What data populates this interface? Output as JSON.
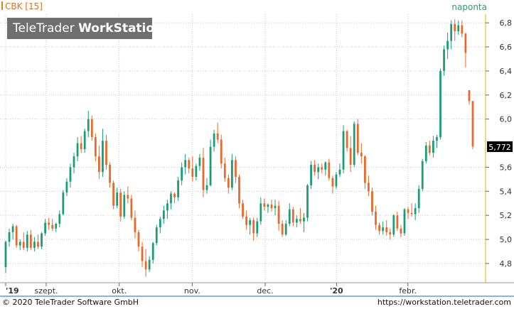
{
  "chart_title": "CBK [15]",
  "interval": "naponta",
  "logo": {
    "brand": "TeleTrader",
    "product": "WorkStation"
  },
  "footer": {
    "copyright": "© 2020 TeleTrader Software GmbH",
    "url": "https://workstation.teletrader.com"
  },
  "colors": {
    "up": "#1a9d76",
    "down": "#e8692a",
    "grid": "#c9c9c9",
    "last_price_bg": "#000000"
  },
  "chart_data": {
    "type": "candlestick",
    "title": "CBK [15]",
    "ylim": [
      4.64,
      6.86
    ],
    "y_ticks": [
      "4,8",
      "5,0",
      "5,2",
      "5,4",
      "5,6",
      "6,0",
      "6,2",
      "6,4",
      "6,6",
      "6,8"
    ],
    "x_ticks": [
      "'19",
      "szept.",
      "okt.",
      "nov.",
      "dec.",
      "'20",
      "febr."
    ],
    "last_price": "5,772",
    "grid": true,
    "candles": [
      [
        4.77,
        4.99,
        4.72,
        4.98
      ],
      [
        4.98,
        5.09,
        4.94,
        5.06
      ],
      [
        5.06,
        5.13,
        5.0,
        5.11
      ],
      [
        5.11,
        5.12,
        4.93,
        4.95
      ],
      [
        4.95,
        5.0,
        4.91,
        4.98
      ],
      [
        4.98,
        5.06,
        4.91,
        4.93
      ],
      [
        4.93,
        5.07,
        4.9,
        5.04
      ],
      [
        5.04,
        5.08,
        4.91,
        4.93
      ],
      [
        4.93,
        5.02,
        4.9,
        4.98
      ],
      [
        4.98,
        5.04,
        4.92,
        4.94
      ],
      [
        4.94,
        5.06,
        4.92,
        5.05
      ],
      [
        5.05,
        5.17,
        5.03,
        5.14
      ],
      [
        5.14,
        5.18,
        5.08,
        5.12
      ],
      [
        5.12,
        5.17,
        5.07,
        5.09
      ],
      [
        5.09,
        5.14,
        5.06,
        5.13
      ],
      [
        5.13,
        5.24,
        5.1,
        5.21
      ],
      [
        5.21,
        5.41,
        5.2,
        5.39
      ],
      [
        5.39,
        5.51,
        5.36,
        5.48
      ],
      [
        5.48,
        5.63,
        5.43,
        5.6
      ],
      [
        5.6,
        5.72,
        5.55,
        5.69
      ],
      [
        5.69,
        5.85,
        5.65,
        5.8
      ],
      [
        5.8,
        5.86,
        5.72,
        5.75
      ],
      [
        5.75,
        5.92,
        5.72,
        5.9
      ],
      [
        5.9,
        6.07,
        5.85,
        6.0
      ],
      [
        6.0,
        6.03,
        5.82,
        5.85
      ],
      [
        5.85,
        5.88,
        5.65,
        5.69
      ],
      [
        5.69,
        5.78,
        5.5,
        5.56
      ],
      [
        5.56,
        5.92,
        5.52,
        5.82
      ],
      [
        5.82,
        5.87,
        5.58,
        5.62
      ],
      [
        5.62,
        5.64,
        5.43,
        5.47
      ],
      [
        5.47,
        5.49,
        5.25,
        5.28
      ],
      [
        5.28,
        5.43,
        5.26,
        5.39
      ],
      [
        5.39,
        5.42,
        5.15,
        5.19
      ],
      [
        5.19,
        5.4,
        5.17,
        5.37
      ],
      [
        5.37,
        5.44,
        5.3,
        5.34
      ],
      [
        5.34,
        5.37,
        5.16,
        5.18
      ],
      [
        5.18,
        5.24,
        5.01,
        5.06
      ],
      [
        5.06,
        5.08,
        4.9,
        4.94
      ],
      [
        4.94,
        4.98,
        4.77,
        4.82
      ],
      [
        4.82,
        4.92,
        4.69,
        4.75
      ],
      [
        4.75,
        4.86,
        4.73,
        4.83
      ],
      [
        4.83,
        4.98,
        4.8,
        4.97
      ],
      [
        4.97,
        5.12,
        4.95,
        5.1
      ],
      [
        5.1,
        5.19,
        5.05,
        5.17
      ],
      [
        5.17,
        5.28,
        5.13,
        5.24
      ],
      [
        5.24,
        5.33,
        5.17,
        5.3
      ],
      [
        5.3,
        5.4,
        5.25,
        5.38
      ],
      [
        5.38,
        5.39,
        5.3,
        5.35
      ],
      [
        5.35,
        5.52,
        5.32,
        5.49
      ],
      [
        5.49,
        5.64,
        5.45,
        5.6
      ],
      [
        5.6,
        5.71,
        5.54,
        5.66
      ],
      [
        5.66,
        5.68,
        5.55,
        5.59
      ],
      [
        5.59,
        5.69,
        5.48,
        5.52
      ],
      [
        5.52,
        5.63,
        5.49,
        5.61
      ],
      [
        5.61,
        5.71,
        5.57,
        5.68
      ],
      [
        5.68,
        5.76,
        5.35,
        5.41
      ],
      [
        5.41,
        5.51,
        5.38,
        5.45
      ],
      [
        5.45,
        5.83,
        5.44,
        5.77
      ],
      [
        5.77,
        5.91,
        5.73,
        5.88
      ],
      [
        5.88,
        5.97,
        5.8,
        5.83
      ],
      [
        5.83,
        5.87,
        5.59,
        5.63
      ],
      [
        5.63,
        5.68,
        5.48,
        5.51
      ],
      [
        5.51,
        5.54,
        5.38,
        5.43
      ],
      [
        5.43,
        5.71,
        5.41,
        5.66
      ],
      [
        5.66,
        5.69,
        5.47,
        5.52
      ],
      [
        5.52,
        5.54,
        5.26,
        5.3
      ],
      [
        5.3,
        5.33,
        5.17,
        5.19
      ],
      [
        5.19,
        5.24,
        5.08,
        5.12
      ],
      [
        5.12,
        5.18,
        5.04,
        5.16
      ],
      [
        5.16,
        5.18,
        4.99,
        5.05
      ],
      [
        5.05,
        5.18,
        5.02,
        5.15
      ],
      [
        5.15,
        5.35,
        5.12,
        5.3
      ],
      [
        5.3,
        5.34,
        5.24,
        5.27
      ],
      [
        5.27,
        5.3,
        5.22,
        5.29
      ],
      [
        5.29,
        5.33,
        5.23,
        5.26
      ],
      [
        5.26,
        5.33,
        5.2,
        5.28
      ],
      [
        5.28,
        5.32,
        5.07,
        5.13
      ],
      [
        5.13,
        5.16,
        5.02,
        5.04
      ],
      [
        5.04,
        5.16,
        5.03,
        5.13
      ],
      [
        5.13,
        5.3,
        5.11,
        5.25
      ],
      [
        5.25,
        5.27,
        5.11,
        5.14
      ],
      [
        5.14,
        5.2,
        5.1,
        5.17
      ],
      [
        5.17,
        5.26,
        5.13,
        5.15
      ],
      [
        5.15,
        5.22,
        5.06,
        5.18
      ],
      [
        5.18,
        5.46,
        5.15,
        5.45
      ],
      [
        5.45,
        5.65,
        5.42,
        5.62
      ],
      [
        5.62,
        5.66,
        5.53,
        5.56
      ],
      [
        5.56,
        5.63,
        5.5,
        5.6
      ],
      [
        5.6,
        5.63,
        5.55,
        5.58
      ],
      [
        5.58,
        5.65,
        5.53,
        5.64
      ],
      [
        5.64,
        5.67,
        5.49,
        5.51
      ],
      [
        5.51,
        5.53,
        5.38,
        5.44
      ],
      [
        5.44,
        5.56,
        5.42,
        5.54
      ],
      [
        5.54,
        5.63,
        5.52,
        5.58
      ],
      [
        5.58,
        5.95,
        5.55,
        5.9
      ],
      [
        5.9,
        5.91,
        5.73,
        5.76
      ],
      [
        5.76,
        5.86,
        5.56,
        5.62
      ],
      [
        5.62,
        5.98,
        5.6,
        5.96
      ],
      [
        5.96,
        6.0,
        5.7,
        5.72
      ],
      [
        5.72,
        5.8,
        5.63,
        5.69
      ],
      [
        5.69,
        5.7,
        5.42,
        5.47
      ],
      [
        5.47,
        5.53,
        5.36,
        5.4
      ],
      [
        5.4,
        5.43,
        5.2,
        5.23
      ],
      [
        5.23,
        5.28,
        5.08,
        5.12
      ],
      [
        5.12,
        5.14,
        5.04,
        5.07
      ],
      [
        5.07,
        5.15,
        5.04,
        5.1
      ],
      [
        5.1,
        5.16,
        5.03,
        5.06
      ],
      [
        5.06,
        5.09,
        5.0,
        5.04
      ],
      [
        5.04,
        5.21,
        5.02,
        5.2
      ],
      [
        5.2,
        5.23,
        5.07,
        5.09
      ],
      [
        5.09,
        5.12,
        5.02,
        5.05
      ],
      [
        5.05,
        5.26,
        5.03,
        5.25
      ],
      [
        5.25,
        5.27,
        5.17,
        5.22
      ],
      [
        5.22,
        5.3,
        5.19,
        5.21
      ],
      [
        5.21,
        5.3,
        5.16,
        5.26
      ],
      [
        5.26,
        5.45,
        5.22,
        5.42
      ],
      [
        5.42,
        5.67,
        5.4,
        5.65
      ],
      [
        5.65,
        5.81,
        5.63,
        5.78
      ],
      [
        5.78,
        5.82,
        5.7,
        5.72
      ],
      [
        5.72,
        5.86,
        5.68,
        5.82
      ],
      [
        5.82,
        5.87,
        5.76,
        5.85
      ],
      [
        5.85,
        6.42,
        5.83,
        6.4
      ],
      [
        6.4,
        6.61,
        6.36,
        6.58
      ],
      [
        6.58,
        6.72,
        6.5,
        6.65
      ],
      [
        6.65,
        6.82,
        6.58,
        6.79
      ],
      [
        6.79,
        6.83,
        6.65,
        6.73
      ],
      [
        6.73,
        6.82,
        6.7,
        6.78
      ],
      [
        6.78,
        6.82,
        6.68,
        6.71
      ],
      [
        6.71,
        6.72,
        6.43,
        6.55
      ],
      [
        6.24,
        6.24,
        6.12,
        6.15
      ],
      [
        6.15,
        6.15,
        5.75,
        5.772
      ]
    ]
  }
}
